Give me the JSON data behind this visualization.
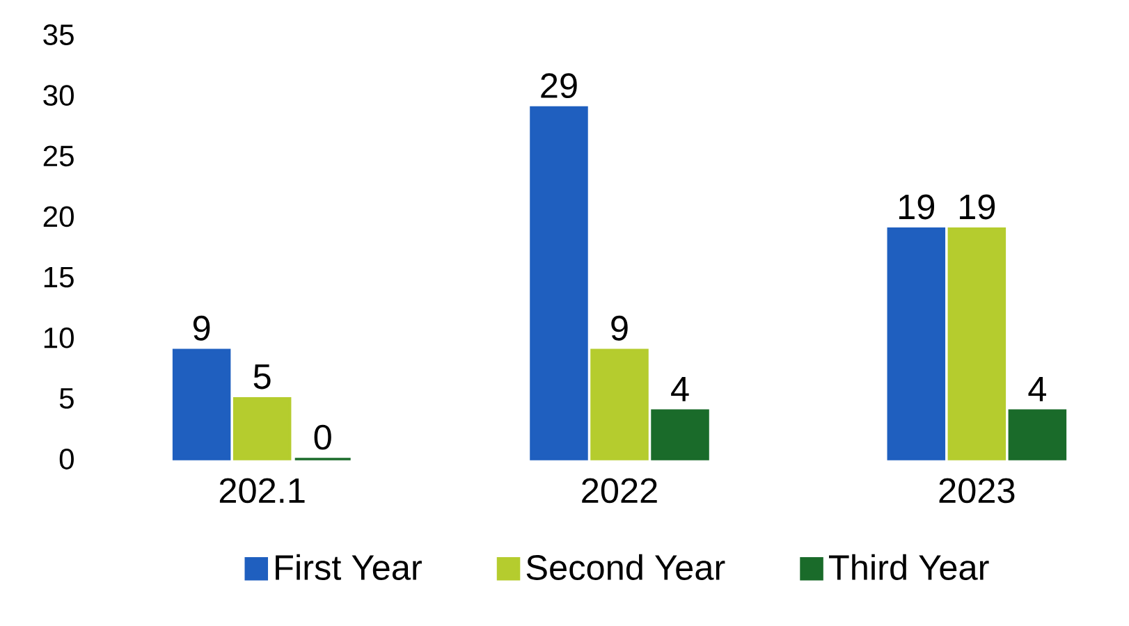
{
  "chart_data": {
    "type": "bar",
    "categories": [
      "202.1",
      "2022",
      "2023"
    ],
    "series": [
      {
        "name": "First Year",
        "color": "#1f5fbf",
        "values": [
          9,
          29,
          19
        ]
      },
      {
        "name": "Second Year",
        "color": "#b5cc2e",
        "values": [
          5,
          9,
          19
        ]
      },
      {
        "name": "Third Year",
        "color": "#1a6b2a",
        "values": [
          0,
          4,
          4
        ]
      }
    ],
    "ylim": [
      0,
      35
    ],
    "yticks": [
      0,
      5,
      10,
      15,
      20,
      25,
      30,
      35
    ],
    "data_labels": true,
    "legend": "bottom",
    "grid": false
  }
}
